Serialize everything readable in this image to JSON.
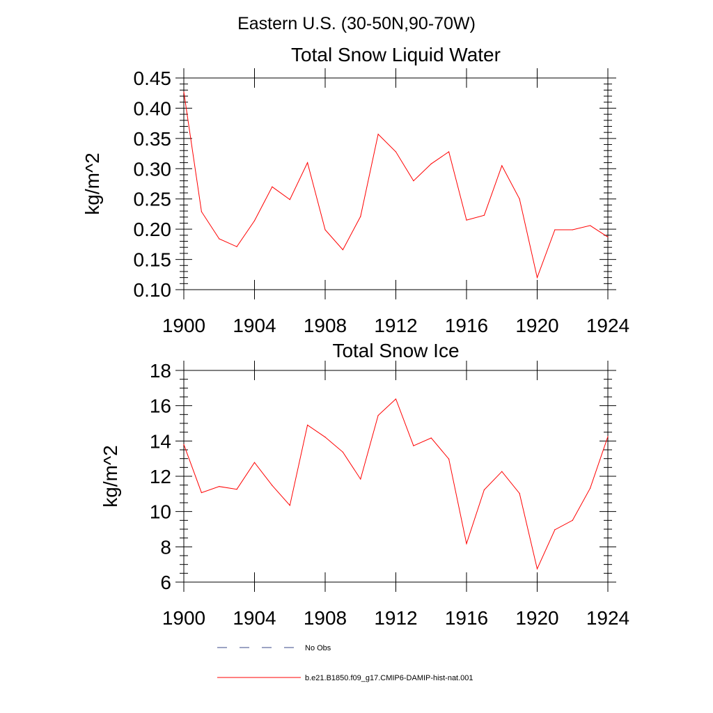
{
  "suptitle": "Eastern U.S. (30-50N,90-70W)",
  "colors": {
    "model": "#ff0000",
    "obs": "#3a4a8a"
  },
  "legend": {
    "placement": "bottom",
    "entries": [
      {
        "label": "No Obs",
        "style": "dashed",
        "color": "#3a4a8a"
      },
      {
        "label": "b.e21.B1850.f09_g17.CMIP6-DAMIP-hist-nat.001",
        "style": "solid",
        "color": "#ff0000"
      }
    ]
  },
  "chart_data": [
    {
      "type": "line",
      "title": "Total Snow Liquid Water",
      "xlabel": "",
      "ylabel": "kg/m^2",
      "xlim": [
        1900,
        1924
      ],
      "ylim": [
        0.1,
        0.45
      ],
      "xticks": [
        "1900",
        "1904",
        "1908",
        "1912",
        "1916",
        "1920",
        "1924"
      ],
      "yticks": [
        "0.10",
        "0.15",
        "0.20",
        "0.25",
        "0.30",
        "0.35",
        "0.40",
        "0.45"
      ],
      "grid": false,
      "series": [
        {
          "name": "b.e21.B1850.f09_g17.CMIP6-DAMIP-hist-nat.001",
          "color": "#ff0000",
          "x": [
            1900,
            1901,
            1902,
            1903,
            1904,
            1905,
            1906,
            1907,
            1908,
            1909,
            1910,
            1911,
            1912,
            1913,
            1914,
            1915,
            1916,
            1917,
            1918,
            1919,
            1920,
            1921,
            1922,
            1923,
            1924
          ],
          "values": [
            0.427,
            0.229,
            0.184,
            0.171,
            0.214,
            0.27,
            0.249,
            0.31,
            0.199,
            0.166,
            0.221,
            0.357,
            0.328,
            0.28,
            0.308,
            0.328,
            0.215,
            0.223,
            0.305,
            0.25,
            0.12,
            0.199,
            0.199,
            0.206,
            0.187
          ]
        }
      ]
    },
    {
      "type": "line",
      "title": "Total Snow Ice",
      "xlabel": "",
      "ylabel": "kg/m^2",
      "xlim": [
        1900,
        1924
      ],
      "ylim": [
        6,
        18
      ],
      "xticks": [
        "1900",
        "1904",
        "1908",
        "1912",
        "1916",
        "1920",
        "1924"
      ],
      "yticks": [
        "6",
        "8",
        "10",
        "12",
        "14",
        "16",
        "18"
      ],
      "grid": false,
      "series": [
        {
          "name": "b.e21.B1850.f09_g17.CMIP6-DAMIP-hist-nat.001",
          "color": "#ff0000",
          "x": [
            1900,
            1901,
            1902,
            1903,
            1904,
            1905,
            1906,
            1907,
            1908,
            1909,
            1910,
            1911,
            1912,
            1913,
            1914,
            1915,
            1916,
            1917,
            1918,
            1919,
            1920,
            1921,
            1922,
            1923,
            1924
          ],
          "values": [
            13.8,
            11.07,
            11.42,
            11.26,
            12.78,
            11.48,
            10.35,
            14.9,
            14.22,
            13.37,
            11.84,
            15.45,
            16.38,
            13.73,
            14.17,
            12.98,
            8.18,
            11.23,
            12.27,
            11.03,
            6.75,
            8.97,
            9.5,
            11.32,
            14.25
          ]
        }
      ]
    }
  ]
}
